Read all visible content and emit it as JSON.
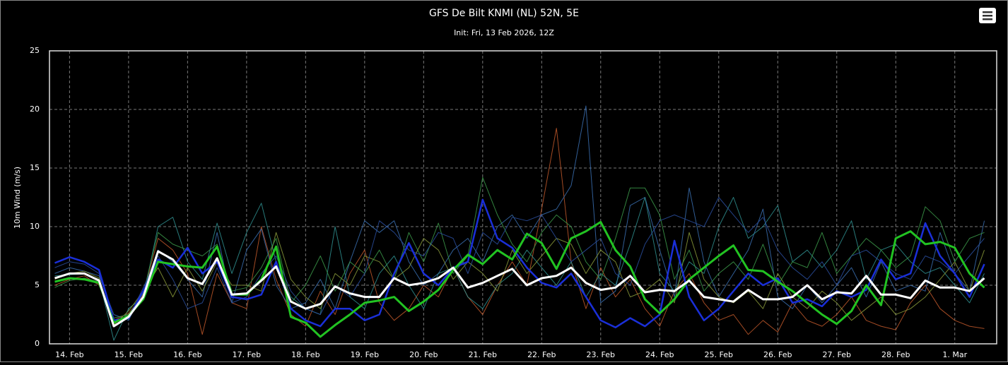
{
  "chart_data": {
    "type": "line",
    "title": "GFS De Bilt KNMI (NL) 52N, 5E",
    "subtitle": "Init: Fri, 13 Feb 2026, 12Z",
    "y_label": "10m Wind (m/s)",
    "grid": true,
    "x": [
      13.75,
      14,
      14.25,
      14.5,
      14.75,
      15,
      15.25,
      15.5,
      15.75,
      16,
      16.25,
      16.5,
      16.75,
      17,
      17.25,
      17.5,
      17.75,
      18,
      18.25,
      18.5,
      18.75,
      19,
      19.25,
      19.5,
      19.75,
      20,
      20.25,
      20.5,
      20.75,
      21,
      21.25,
      21.5,
      21.75,
      22,
      22.25,
      22.5,
      22.75,
      23,
      23.25,
      23.5,
      23.75,
      24,
      24.25,
      24.5,
      24.75,
      25,
      25.25,
      25.5,
      25.75,
      26,
      26.25,
      26.5,
      26.75,
      27,
      27.25,
      27.5,
      27.75,
      28,
      28.25,
      28.5,
      28.75,
      29,
      29.25,
      29.5
    ],
    "xlim": [
      13.66,
      29.71
    ],
    "xticks": [
      {
        "value": 14,
        "label": "14. Feb"
      },
      {
        "value": 15,
        "label": "15. Feb"
      },
      {
        "value": 16,
        "label": "16. Feb"
      },
      {
        "value": 17,
        "label": "17. Feb"
      },
      {
        "value": 18,
        "label": "18. Feb"
      },
      {
        "value": 19,
        "label": "19. Feb"
      },
      {
        "value": 20,
        "label": "20. Feb"
      },
      {
        "value": 21,
        "label": "21. Feb"
      },
      {
        "value": 22,
        "label": "22. Feb"
      },
      {
        "value": 23,
        "label": "23. Feb"
      },
      {
        "value": 24,
        "label": "24. Feb"
      },
      {
        "value": 25,
        "label": "25. Feb"
      },
      {
        "value": 26,
        "label": "26. Feb"
      },
      {
        "value": 27,
        "label": "27. Feb"
      },
      {
        "value": 28,
        "label": "28. Feb"
      },
      {
        "value": 29,
        "label": "1. Mar"
      }
    ],
    "ylim": [
      0,
      25
    ],
    "yticks": [
      0,
      5,
      10,
      15,
      20,
      25
    ],
    "series": [
      {
        "color": "#c0582a",
        "width": 1,
        "values": [
          5.0,
          5.5,
          5.8,
          5.0,
          2.0,
          2.6,
          4.2,
          9.0,
          8.0,
          6.0,
          0.8,
          6.0,
          3.5,
          3.0,
          10.0,
          5.5,
          2.5,
          1.5,
          4.5,
          2.5,
          6.0,
          8.0,
          3.5,
          2.0,
          3.0,
          5.0,
          4.0,
          6.5,
          4.0,
          2.5,
          5.0,
          7.0,
          5.0,
          11.5,
          18.4,
          7.0,
          3.0,
          6.5,
          4.0,
          5.5,
          3.0,
          1.5,
          4.5,
          6.0,
          3.5,
          2.0,
          2.5,
          0.8,
          2.0,
          1.0,
          3.5,
          2.0,
          1.5,
          2.5,
          4.0,
          2.0,
          1.5,
          1.2,
          3.5,
          5.0,
          3.0,
          2.0,
          1.5,
          1.3
        ]
      },
      {
        "color": "#3a6fb0",
        "width": 1,
        "values": [
          6.0,
          6.5,
          6.2,
          5.8,
          2.5,
          2.0,
          4.5,
          8.0,
          7.0,
          5.5,
          4.0,
          9.5,
          3.5,
          8.0,
          9.8,
          5.0,
          3.0,
          3.5,
          5.5,
          3.0,
          7.0,
          10.5,
          9.5,
          10.5,
          7.0,
          5.0,
          6.0,
          8.0,
          9.0,
          7.0,
          10.0,
          11.0,
          9.0,
          11.0,
          11.5,
          13.5,
          20.3,
          3.5,
          4.5,
          11.8,
          12.5,
          8.0,
          4.0,
          13.3,
          7.0,
          4.0,
          6.0,
          8.0,
          11.5,
          4.0,
          3.0,
          5.0,
          3.5,
          5.0,
          6.5,
          4.0,
          7.0,
          4.5,
          5.0,
          4.5,
          9.5,
          6.0,
          4.5,
          10.5
        ]
      },
      {
        "color": "#2f8f8f",
        "width": 1,
        "values": [
          5.8,
          5.9,
          6.0,
          5.5,
          0.3,
          3.0,
          4.0,
          10.0,
          10.8,
          7.0,
          5.5,
          10.3,
          6.0,
          9.5,
          12.0,
          7.0,
          4.0,
          3.0,
          2.5,
          10.0,
          4.0,
          3.0,
          6.0,
          7.5,
          5.0,
          3.0,
          6.0,
          6.5,
          4.0,
          3.0,
          5.0,
          6.0,
          8.0,
          6.5,
          5.0,
          7.0,
          4.0,
          6.0,
          5.0,
          8.5,
          12.5,
          6.0,
          4.5,
          7.0,
          6.0,
          10.0,
          12.5,
          9.0,
          10.0,
          11.8,
          7.0,
          8.0,
          6.5,
          8.0,
          10.5,
          5.5,
          8.0,
          8.5,
          7.0,
          6.0,
          6.5,
          5.0,
          3.5,
          6.0
        ]
      },
      {
        "color": "#8a9a3a",
        "width": 1,
        "values": [
          5.5,
          6.0,
          6.2,
          5.6,
          1.6,
          2.8,
          4.5,
          6.5,
          4.0,
          6.5,
          4.5,
          7.0,
          5.0,
          5.0,
          4.5,
          9.5,
          5.5,
          4.0,
          3.0,
          6.0,
          5.0,
          7.5,
          7.0,
          5.5,
          6.5,
          9.0,
          8.0,
          5.5,
          7.0,
          6.0,
          4.5,
          8.0,
          6.0,
          7.5,
          9.0,
          8.5,
          6.0,
          8.0,
          7.0,
          4.0,
          4.5,
          5.5,
          3.5,
          9.5,
          5.5,
          4.0,
          3.5,
          4.5,
          3.0,
          6.0,
          4.0,
          3.0,
          4.5,
          3.5,
          2.0,
          3.0,
          4.0,
          2.5,
          3.0,
          4.0,
          5.5,
          7.0,
          4.5,
          8.0
        ]
      },
      {
        "color": "#3c9a4a",
        "width": 1,
        "values": [
          4.8,
          5.4,
          5.6,
          5.3,
          2.2,
          2.5,
          4.3,
          9.5,
          8.5,
          8.0,
          7.5,
          8.5,
          4.5,
          4.8,
          6.5,
          9.0,
          3.5,
          5.0,
          7.5,
          4.5,
          7.0,
          6.0,
          8.0,
          5.5,
          9.5,
          7.0,
          10.3,
          6.0,
          7.5,
          14.2,
          11.0,
          8.5,
          7.0,
          9.5,
          11.0,
          10.0,
          7.0,
          5.5,
          9.0,
          13.3,
          13.3,
          11.0,
          5.5,
          8.0,
          4.5,
          6.0,
          7.0,
          5.5,
          8.5,
          5.0,
          7.0,
          6.5,
          9.5,
          6.0,
          7.5,
          9.0,
          8.0,
          6.5,
          7.5,
          11.7,
          10.5,
          7.0,
          9.0,
          9.5
        ]
      },
      {
        "color": "#2a4fa0",
        "width": 1,
        "values": [
          6.5,
          7.0,
          6.8,
          6.0,
          1.8,
          2.2,
          4.8,
          7.5,
          5.5,
          3.0,
          3.5,
          6.5,
          3.5,
          4.0,
          6.0,
          7.5,
          4.5,
          3.0,
          2.5,
          5.0,
          4.0,
          6.0,
          10.5,
          9.5,
          8.0,
          7.5,
          9.5,
          9.0,
          6.0,
          9.5,
          8.5,
          10.8,
          10.5,
          11.0,
          9.0,
          7.0,
          8.0,
          9.0,
          6.0,
          5.0,
          8.5,
          10.5,
          11.0,
          10.5,
          10.0,
          12.5,
          11.0,
          9.5,
          10.8,
          8.0,
          6.5,
          5.5,
          7.0,
          5.0,
          7.5,
          8.0,
          7.0,
          6.0,
          5.5,
          7.5,
          7.0,
          6.0,
          7.5,
          9.0
        ]
      },
      {
        "color": "#1a2fd8",
        "width": 2.5,
        "values": [
          6.9,
          7.4,
          7.0,
          6.3,
          2.0,
          2.2,
          4.5,
          7.2,
          6.5,
          8.2,
          6.0,
          7.0,
          4.0,
          3.8,
          4.2,
          7.0,
          3.0,
          2.0,
          1.5,
          3.0,
          3.0,
          2.0,
          2.5,
          6.0,
          8.6,
          6.0,
          5.0,
          6.5,
          7.0,
          12.3,
          9.0,
          8.2,
          6.5,
          5.2,
          4.8,
          6.0,
          4.0,
          2.0,
          1.4,
          2.2,
          1.5,
          2.5,
          8.8,
          4.0,
          2.0,
          3.0,
          4.5,
          6.0,
          5.0,
          5.6,
          3.5,
          3.8,
          3.2,
          4.5,
          4.0,
          4.6,
          7.2,
          5.5,
          6.0,
          10.3,
          7.5,
          6.0,
          4.0,
          6.8
        ]
      },
      {
        "color": "#22c322",
        "width": 3,
        "values": [
          5.3,
          5.6,
          5.5,
          5.2,
          1.8,
          2.4,
          3.8,
          7.0,
          6.8,
          6.6,
          6.5,
          8.3,
          4.2,
          4.2,
          5.5,
          8.3,
          2.3,
          1.8,
          0.6,
          1.6,
          2.5,
          3.5,
          3.7,
          4.0,
          2.8,
          3.6,
          4.6,
          6.3,
          7.6,
          6.8,
          8.0,
          7.2,
          9.4,
          8.6,
          6.4,
          9.0,
          9.6,
          10.4,
          8.0,
          6.6,
          3.8,
          2.6,
          3.8,
          5.5,
          6.5,
          7.5,
          8.4,
          6.3,
          6.2,
          5.3,
          4.5,
          3.5,
          2.5,
          1.7,
          2.8,
          5.0,
          3.3,
          9.0,
          9.6,
          8.5,
          8.7,
          8.2,
          6.0,
          4.8
        ]
      },
      {
        "color": "#ffffff",
        "width": 3,
        "values": [
          5.6,
          6.0,
          6.0,
          5.4,
          1.5,
          2.3,
          4.0,
          7.9,
          7.2,
          5.6,
          5.1,
          7.3,
          4.2,
          4.3,
          5.4,
          6.6,
          3.6,
          3.0,
          3.4,
          4.9,
          4.3,
          4.0,
          4.0,
          5.6,
          5.0,
          5.2,
          5.6,
          6.5,
          4.8,
          5.2,
          5.8,
          6.4,
          5.0,
          5.6,
          5.8,
          6.5,
          5.2,
          4.6,
          4.8,
          5.8,
          4.4,
          4.6,
          4.5,
          5.4,
          4.0,
          3.8,
          3.6,
          4.6,
          3.8,
          3.8,
          4.0,
          5.0,
          3.8,
          4.4,
          4.3,
          5.8,
          4.2,
          4.2,
          3.9,
          5.4,
          4.8,
          4.8,
          4.5,
          5.6
        ]
      }
    ]
  }
}
